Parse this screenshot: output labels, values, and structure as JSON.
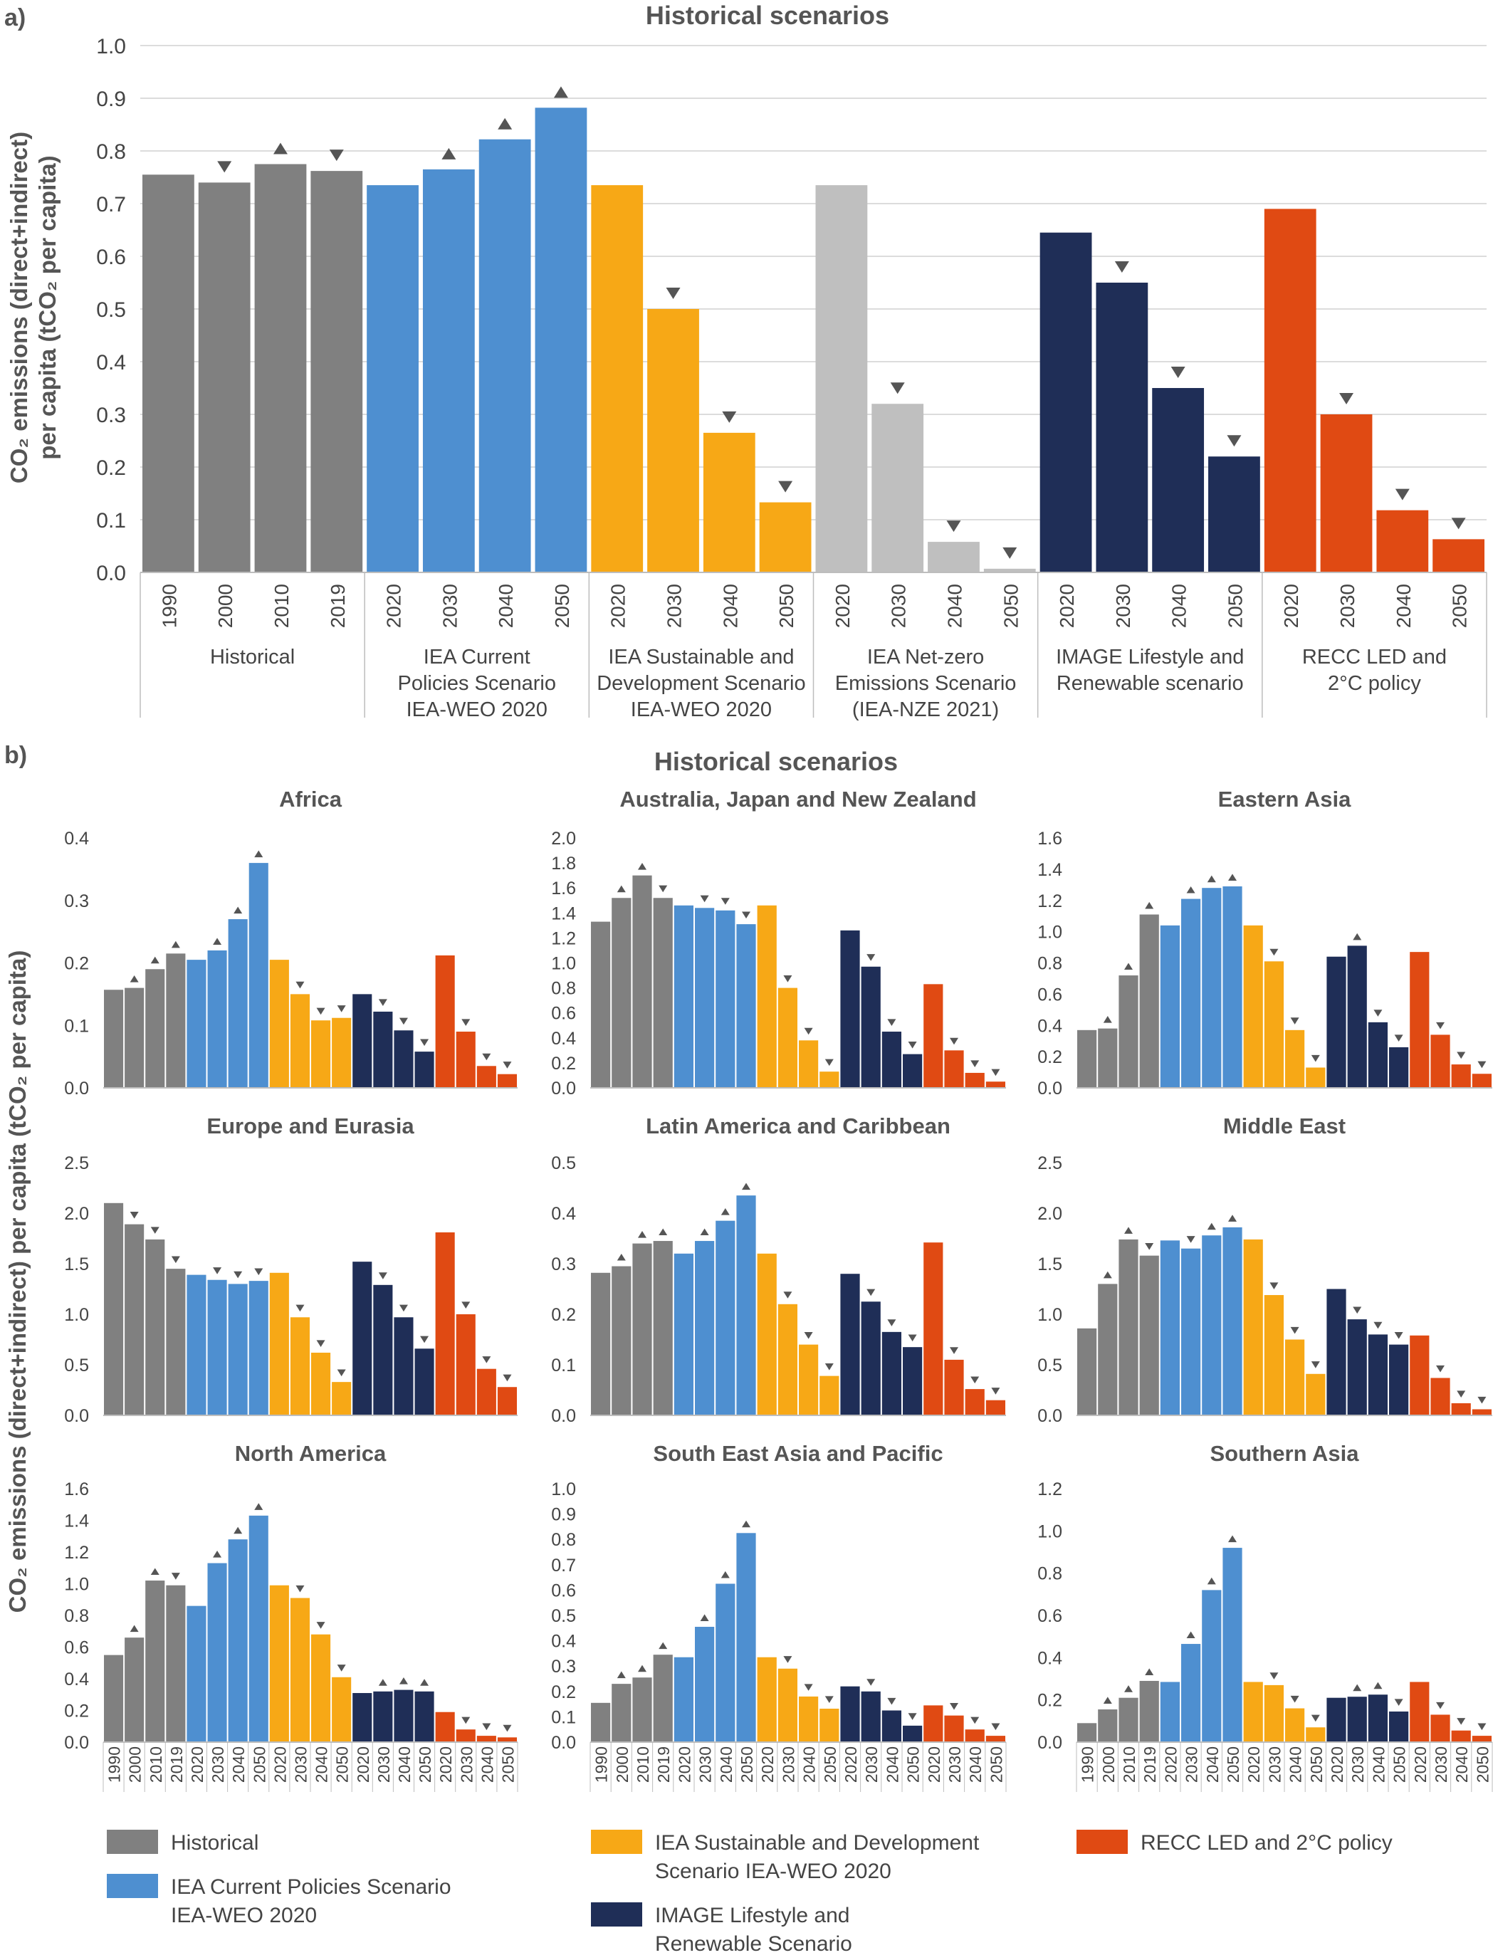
{
  "figure": {
    "panel_a_label": "a)",
    "panel_b_label": "b)",
    "ylabel_a": "CO₂ emissions (direct+indirect)|per capita (tCO₂ per capita)",
    "ylabel_b": "CO₂ emissions (direct+indirect) per capita (tCO₂ per capita)"
  },
  "colors": {
    "historical": "#808080",
    "iea_cps": "#4e8fd0",
    "iea_sds": "#f7a816",
    "iea_nze": "#bfbfbf",
    "image": "#1f2e57",
    "recc": "#e04a13"
  },
  "legend": [
    {
      "key": "historical",
      "label": "Historical"
    },
    {
      "key": "iea_cps",
      "label": "IEA Current Policies Scenario|IEA-WEO 2020"
    },
    {
      "key": "iea_sds",
      "label": "IEA Sustainable and Development|Scenario IEA-WEO 2020"
    },
    {
      "key": "image",
      "label": "IMAGE Lifestyle and|Renewable Scenario"
    },
    {
      "key": "recc",
      "label": "RECC LED and 2°C policy"
    }
  ],
  "chart_data": [
    {
      "type": "bar",
      "title": "Historical scenarios",
      "ylim": [
        0,
        1.0
      ],
      "yticks": [
        "0.0",
        "0.1",
        "0.2",
        "0.3",
        "0.4",
        "0.5",
        "0.6",
        "0.7",
        "0.8",
        "0.9",
        "1.0"
      ],
      "groups": [
        {
          "key": "historical",
          "label": "Historical",
          "years": [
            "1990",
            "2000",
            "2010",
            "2019"
          ],
          "values": [
            0.755,
            0.74,
            0.775,
            0.762
          ],
          "markers": [
            "",
            "down",
            "up",
            "down"
          ]
        },
        {
          "key": "iea_cps",
          "label": "IEA Current|Policies Scenario|IEA-WEO 2020",
          "years": [
            "2020",
            "2030",
            "2040",
            "2050"
          ],
          "values": [
            0.735,
            0.765,
            0.822,
            0.882
          ],
          "markers": [
            "",
            "up",
            "up",
            "up"
          ]
        },
        {
          "key": "iea_sds",
          "label": "IEA Sustainable and|Development Scenario|IEA-WEO 2020",
          "years": [
            "2020",
            "2030",
            "2040",
            "2050"
          ],
          "values": [
            0.735,
            0.5,
            0.265,
            0.133
          ],
          "markers": [
            "",
            "down",
            "down",
            "down"
          ]
        },
        {
          "key": "iea_nze",
          "label": "IEA Net-zero|Emissions Scenario|(IEA-NZE 2021)",
          "years": [
            "2020",
            "2030",
            "2040",
            "2050"
          ],
          "values": [
            0.735,
            0.32,
            0.058,
            0.007
          ],
          "markers": [
            "",
            "down",
            "down",
            "down"
          ]
        },
        {
          "key": "image",
          "label": "IMAGE Lifestyle and|Renewable scenario",
          "years": [
            "2020",
            "2030",
            "2040",
            "2050"
          ],
          "values": [
            0.645,
            0.55,
            0.35,
            0.22
          ],
          "markers": [
            "",
            "down",
            "down",
            "down"
          ]
        },
        {
          "key": "recc",
          "label": "RECC LED and|2°C policy",
          "years": [
            "2020",
            "2030",
            "2040",
            "2050"
          ],
          "values": [
            0.69,
            0.3,
            0.118,
            0.063
          ],
          "markers": [
            "",
            "down",
            "down",
            "down"
          ]
        }
      ]
    },
    {
      "type": "bar",
      "title": "Historical scenarios",
      "years": [
        "1990",
        "2000",
        "2010",
        "2019",
        "2020",
        "2030",
        "2040",
        "2050",
        "2020",
        "2030",
        "2040",
        "2050",
        "2020",
        "2030",
        "2040",
        "2050",
        "2020",
        "2030",
        "2040",
        "2050"
      ],
      "series_keys": [
        "historical",
        "iea_cps",
        "iea_sds",
        "image",
        "recc"
      ],
      "regions": [
        {
          "title": "Africa",
          "ylim": [
            0,
            0.4
          ],
          "yticks": [
            "0.0",
            "0.1",
            "0.2",
            "0.3",
            "0.4"
          ],
          "values": [
            0.157,
            0.16,
            0.19,
            0.215,
            0.205,
            0.22,
            0.27,
            0.36,
            0.205,
            0.15,
            0.108,
            0.112,
            0.15,
            0.122,
            0.092,
            0.058,
            0.212,
            0.09,
            0.035,
            0.022
          ],
          "markers": [
            "",
            "up",
            "up",
            "up",
            "",
            "up",
            "up",
            "up",
            "",
            "down",
            "down",
            "down",
            "",
            "down",
            "down",
            "down",
            "",
            "down",
            "down",
            "down"
          ]
        },
        {
          "title": "Australia, Japan and New Zealand",
          "ylim": [
            0,
            2.0
          ],
          "yticks": [
            "0.0",
            "0.2",
            "0.4",
            "0.6",
            "0.8",
            "1.0",
            "1.2",
            "1.4",
            "1.6",
            "1.8",
            "2.0"
          ],
          "values": [
            1.33,
            1.52,
            1.7,
            1.52,
            1.46,
            1.44,
            1.42,
            1.31,
            1.46,
            0.8,
            0.38,
            0.13,
            1.26,
            0.97,
            0.45,
            0.27,
            0.83,
            0.3,
            0.12,
            0.05
          ],
          "markers": [
            "",
            "up",
            "up",
            "down",
            "",
            "down",
            "down",
            "down",
            "",
            "down",
            "down",
            "down",
            "",
            "down",
            "down",
            "down",
            "",
            "down",
            "down",
            "down"
          ]
        },
        {
          "title": "Eastern Asia",
          "ylim": [
            0,
            1.6
          ],
          "yticks": [
            "0.0",
            "0.2",
            "0.4",
            "0.6",
            "0.8",
            "1.0",
            "1.2",
            "1.4",
            "1.6"
          ],
          "values": [
            0.37,
            0.38,
            0.72,
            1.11,
            1.04,
            1.21,
            1.28,
            1.29,
            1.04,
            0.81,
            0.37,
            0.13,
            0.84,
            0.91,
            0.42,
            0.26,
            0.87,
            0.34,
            0.15,
            0.09
          ],
          "markers": [
            "",
            "up",
            "up",
            "up",
            "",
            "up",
            "up",
            "up",
            "",
            "down",
            "down",
            "down",
            "",
            "up",
            "down",
            "down",
            "",
            "down",
            "down",
            "down"
          ]
        },
        {
          "title": "Europe and Eurasia",
          "ylim": [
            0,
            2.5
          ],
          "yticks": [
            "0.0",
            "0.5",
            "1.0",
            "1.5",
            "2.0",
            "2.5"
          ],
          "values": [
            2.1,
            1.89,
            1.74,
            1.45,
            1.39,
            1.34,
            1.3,
            1.33,
            1.41,
            0.97,
            0.62,
            0.33,
            1.52,
            1.29,
            0.97,
            0.66,
            1.81,
            1.0,
            0.46,
            0.28
          ],
          "markers": [
            "",
            "down",
            "down",
            "down",
            "",
            "down",
            "down",
            "down",
            "",
            "down",
            "down",
            "down",
            "",
            "down",
            "down",
            "down",
            "",
            "down",
            "down",
            "down"
          ]
        },
        {
          "title": "Latin America and Caribbean",
          "ylim": [
            0,
            0.5
          ],
          "yticks": [
            "0.0",
            "0.1",
            "0.2",
            "0.3",
            "0.4",
            "0.5"
          ],
          "values": [
            0.282,
            0.295,
            0.34,
            0.345,
            0.32,
            0.345,
            0.385,
            0.435,
            0.32,
            0.22,
            0.14,
            0.078,
            0.28,
            0.225,
            0.165,
            0.135,
            0.342,
            0.11,
            0.052,
            0.03
          ],
          "markers": [
            "",
            "up",
            "up",
            "up",
            "",
            "up",
            "up",
            "up",
            "",
            "down",
            "down",
            "down",
            "",
            "down",
            "down",
            "down",
            "",
            "down",
            "down",
            "down"
          ]
        },
        {
          "title": "Middle East",
          "ylim": [
            0,
            2.5
          ],
          "yticks": [
            "0.0",
            "0.5",
            "1.0",
            "1.5",
            "2.0",
            "2.5"
          ],
          "values": [
            0.86,
            1.3,
            1.74,
            1.58,
            1.73,
            1.65,
            1.78,
            1.86,
            1.74,
            1.19,
            0.75,
            0.41,
            1.25,
            0.95,
            0.8,
            0.7,
            0.79,
            0.37,
            0.12,
            0.06
          ],
          "markers": [
            "",
            "up",
            "up",
            "down",
            "",
            "down",
            "up",
            "up",
            "",
            "down",
            "down",
            "down",
            "",
            "down",
            "down",
            "down",
            "",
            "down",
            "down",
            "down"
          ]
        },
        {
          "title": "North America",
          "ylim": [
            0,
            1.6
          ],
          "yticks": [
            "0.0",
            "0.2",
            "0.4",
            "0.6",
            "0.8",
            "1.0",
            "1.2",
            "1.4",
            "1.6"
          ],
          "values": [
            0.55,
            0.66,
            1.02,
            0.99,
            0.86,
            1.13,
            1.28,
            1.43,
            0.99,
            0.91,
            0.68,
            0.41,
            0.31,
            0.32,
            0.33,
            0.32,
            0.19,
            0.08,
            0.04,
            0.03
          ],
          "markers": [
            "",
            "up",
            "up",
            "down",
            "",
            "up",
            "up",
            "up",
            "",
            "down",
            "down",
            "down",
            "",
            "up",
            "up",
            "up",
            "",
            "down",
            "down",
            "down"
          ]
        },
        {
          "title": "South East Asia and Pacific",
          "ylim": [
            0,
            1.0
          ],
          "yticks": [
            "0.0",
            "0.1",
            "0.2",
            "0.3",
            "0.4",
            "0.5",
            "0.6",
            "0.7",
            "0.8",
            "0.9",
            "1.0"
          ],
          "values": [
            0.155,
            0.23,
            0.255,
            0.345,
            0.335,
            0.455,
            0.625,
            0.825,
            0.335,
            0.29,
            0.18,
            0.132,
            0.22,
            0.2,
            0.125,
            0.065,
            0.145,
            0.105,
            0.05,
            0.025
          ],
          "markers": [
            "",
            "up",
            "up",
            "up",
            "",
            "up",
            "up",
            "up",
            "",
            "down",
            "down",
            "down",
            "",
            "down",
            "down",
            "down",
            "",
            "down",
            "down",
            "down"
          ]
        },
        {
          "title": "Southern Asia",
          "ylim": [
            0,
            1.2
          ],
          "yticks": [
            "0.0",
            "0.2",
            "0.4",
            "0.6",
            "0.8",
            "1.0",
            "1.2"
          ],
          "values": [
            0.09,
            0.155,
            0.21,
            0.29,
            0.285,
            0.465,
            0.72,
            0.92,
            0.285,
            0.27,
            0.16,
            0.07,
            0.21,
            0.215,
            0.225,
            0.145,
            0.285,
            0.13,
            0.055,
            0.03
          ],
          "markers": [
            "",
            "up",
            "up",
            "up",
            "",
            "up",
            "up",
            "up",
            "",
            "down",
            "down",
            "down",
            "",
            "up",
            "up",
            "down",
            "",
            "down",
            "down",
            "down"
          ]
        }
      ]
    }
  ]
}
